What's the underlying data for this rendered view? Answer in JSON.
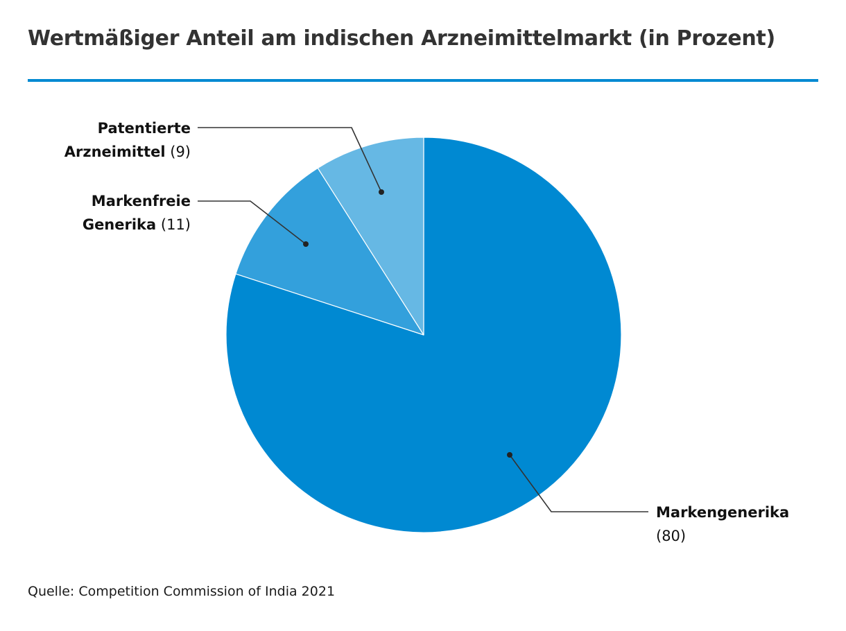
{
  "chart_data": {
    "type": "pie",
    "title": "Wertmäßiger Anteil am indischen Arzneimittelmarkt (in Prozent)",
    "unit": "Prozent",
    "slices": [
      {
        "name_line1": "Markengenerika",
        "name_line2": "",
        "value": 80,
        "value_text": "(80)",
        "color": "#0089d2"
      },
      {
        "name_line1": "Markenfreie",
        "name_line2": "Generika",
        "value": 11,
        "value_text": "(11)",
        "color": "#33a0dc"
      },
      {
        "name_line1": "Patentierte",
        "name_line2": "Arzneimittel",
        "value": 9,
        "value_text": "(9)",
        "color": "#66b8e4"
      }
    ],
    "start_angle": "12 o'clock",
    "direction": "clockwise",
    "legend": "none",
    "source": "Quelle: Competition Commission of India 2021"
  },
  "colors": {
    "accent_rule": "#0089d2",
    "title_text": "#333333",
    "leader_line": "#333333"
  }
}
